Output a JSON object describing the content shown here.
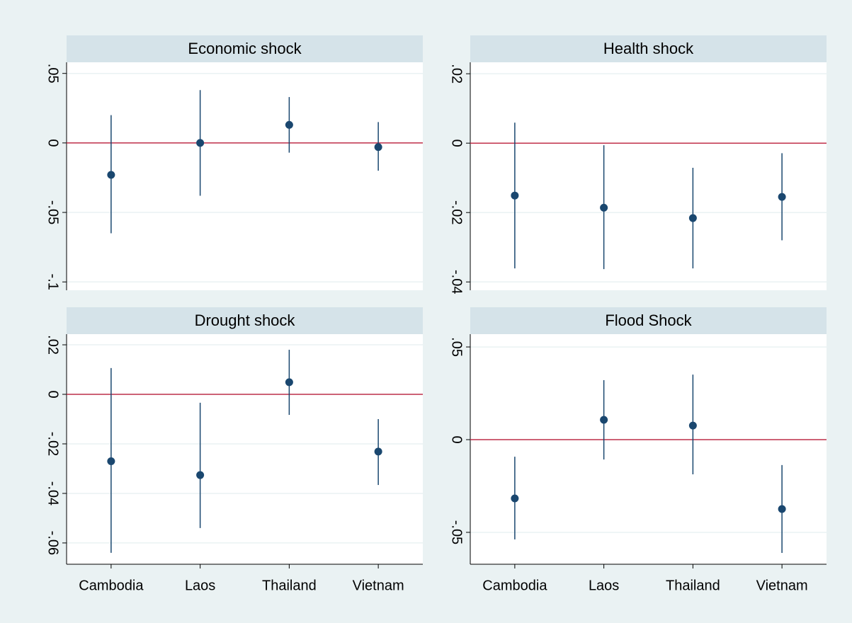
{
  "chart_data": [
    {
      "type": "errorbar",
      "title": "Economic shock",
      "color": "#1a476f",
      "refline": 0,
      "refline_color": "#c0304a",
      "grid": true,
      "values": [
        -0.023,
        0,
        0.013,
        -0.003
      ],
      "ci_low": [
        -0.065,
        -0.038,
        -0.007,
        -0.02
      ],
      "ci_high": [
        0.02,
        0.038,
        0.033,
        0.015
      ],
      "ylim": [
        -0.106,
        0.058
      ],
      "yticks": [
        {
          "value": -0.1,
          "label": "-.1"
        },
        {
          "value": -0.05,
          "label": "-.05"
        },
        0,
        {
          "value": 0.05,
          "label": ".05"
        }
      ]
    },
    {
      "type": "errorbar",
      "title": "Health shock",
      "color": "#1a476f",
      "refline": 0,
      "refline_color": "#c0304a",
      "grid": true,
      "values": [
        -0.0151,
        -0.0186,
        -0.0216,
        -0.0155
      ],
      "ci_low": [
        -0.0361,
        -0.0363,
        -0.0361,
        -0.028
      ],
      "ci_high": [
        0.0059,
        -0.0006,
        -0.0071,
        -0.0029
      ],
      "ylim": [
        -0.0424,
        0.0233
      ],
      "yticks": [
        {
          "value": -0.04,
          "label": "-.04"
        },
        {
          "value": -0.02,
          "label": "-.02"
        },
        0,
        {
          "value": 0.02,
          "label": ".02"
        }
      ]
    },
    {
      "type": "errorbar",
      "title": "Drought shock",
      "color": "#1a476f",
      "refline": 0,
      "refline_color": "#c0304a",
      "grid": true,
      "categories": [
        "Cambodia",
        "Laos",
        "Thailand",
        "Vietnam"
      ],
      "values": [
        -0.027,
        -0.0326,
        0.0049,
        -0.0231
      ],
      "ci_low": [
        -0.064,
        -0.054,
        -0.0083,
        -0.0366
      ],
      "ci_high": [
        0.0106,
        -0.0034,
        0.018,
        -0.01
      ],
      "ylim": [
        -0.0686,
        0.0243
      ],
      "yticks": [
        {
          "value": -0.06,
          "label": "-.06"
        },
        {
          "value": -0.04,
          "label": "-.04"
        },
        {
          "value": -0.02,
          "label": "-.02"
        },
        0,
        {
          "value": 0.02,
          "label": ".02"
        }
      ]
    },
    {
      "type": "errorbar",
      "title": "Flood Shock",
      "color": "#1a476f",
      "refline": 0,
      "refline_color": "#c0304a",
      "grid": true,
      "categories": [
        "Cambodia",
        "Laos",
        "Thailand",
        "Vietnam"
      ],
      "values": [
        -0.0317,
        0.0107,
        0.0076,
        -0.0374
      ],
      "ci_low": [
        -0.0538,
        -0.0107,
        -0.0187,
        -0.0611
      ],
      "ci_high": [
        -0.0092,
        0.0321,
        0.0351,
        -0.0137
      ],
      "ylim": [
        -0.0672,
        0.0569
      ],
      "yticks": [
        {
          "value": -0.05,
          "label": "-.05"
        },
        0,
        {
          "value": 0.05,
          "label": ".05"
        }
      ]
    }
  ]
}
